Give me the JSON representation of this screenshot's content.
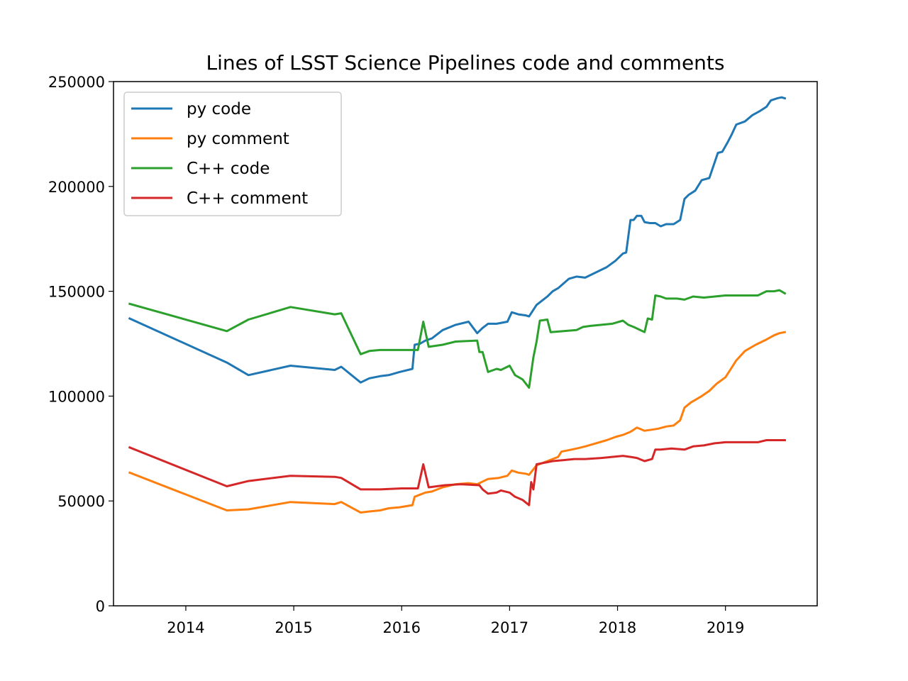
{
  "chart_data": {
    "type": "line",
    "title": "Lines of LSST Science Pipelines code and comments",
    "xlabel": "",
    "ylabel": "",
    "xlim": [
      2013.33,
      2019.85
    ],
    "ylim": [
      0,
      250000
    ],
    "x_ticks": [
      2014,
      2015,
      2016,
      2017,
      2018,
      2019
    ],
    "y_ticks": [
      0,
      50000,
      100000,
      150000,
      200000,
      250000
    ],
    "grid": false,
    "legend_position": "top-left",
    "series": [
      {
        "name": "py code",
        "color": "#1f77b4",
        "x": [
          2013.48,
          2014.38,
          2014.58,
          2014.97,
          2015.38,
          2015.44,
          2015.62,
          2015.7,
          2015.8,
          2015.88,
          2015.98,
          2016.1,
          2016.12,
          2016.17,
          2016.22,
          2016.28,
          2016.38,
          2016.5,
          2016.62,
          2016.7,
          2016.75,
          2016.8,
          2016.88,
          2016.98,
          2017.02,
          2017.08,
          2017.15,
          2017.18,
          2017.25,
          2017.35,
          2017.4,
          2017.45,
          2017.55,
          2017.62,
          2017.7,
          2017.8,
          2017.9,
          2017.98,
          2018.05,
          2018.08,
          2018.12,
          2018.15,
          2018.18,
          2018.22,
          2018.25,
          2018.3,
          2018.35,
          2018.4,
          2018.45,
          2018.52,
          2018.58,
          2018.62,
          2018.66,
          2018.72,
          2018.78,
          2018.85,
          2018.93,
          2018.97,
          2019.02,
          2019.06,
          2019.1,
          2019.18,
          2019.25,
          2019.32,
          2019.38,
          2019.42,
          2019.48,
          2019.52,
          2019.55
        ],
        "y": [
          137000,
          116000,
          110000,
          114500,
          112500,
          114000,
          106500,
          108500,
          109500,
          110000,
          111500,
          113000,
          124500,
          125000,
          126500,
          127500,
          131500,
          134000,
          135500,
          130000,
          132500,
          134500,
          134500,
          135500,
          140000,
          139000,
          138500,
          138000,
          143500,
          147500,
          150000,
          151500,
          156000,
          157000,
          156500,
          159000,
          161500,
          164500,
          168000,
          168500,
          184000,
          184000,
          186000,
          186000,
          183000,
          182500,
          182500,
          181000,
          182000,
          182000,
          184000,
          194000,
          196000,
          198000,
          203000,
          204000,
          216000,
          216500,
          221000,
          225000,
          229500,
          231000,
          234000,
          236000,
          238000,
          241000,
          242000,
          242500,
          242000
        ]
      },
      {
        "name": "py comment",
        "color": "#ff7f0e",
        "x": [
          2013.48,
          2014.38,
          2014.58,
          2014.97,
          2015.38,
          2015.44,
          2015.62,
          2015.7,
          2015.8,
          2015.88,
          2015.98,
          2016.1,
          2016.12,
          2016.17,
          2016.22,
          2016.28,
          2016.38,
          2016.5,
          2016.62,
          2016.7,
          2016.8,
          2016.9,
          2016.98,
          2017.02,
          2017.08,
          2017.15,
          2017.18,
          2017.25,
          2017.35,
          2017.45,
          2017.48,
          2017.62,
          2017.7,
          2017.8,
          2017.9,
          2017.98,
          2018.05,
          2018.12,
          2018.18,
          2018.25,
          2018.32,
          2018.38,
          2018.45,
          2018.52,
          2018.58,
          2018.62,
          2018.68,
          2018.78,
          2018.85,
          2018.92,
          2019.0,
          2019.05,
          2019.1,
          2019.18,
          2019.28,
          2019.38,
          2019.45,
          2019.5,
          2019.55
        ],
        "y": [
          63500,
          45500,
          46000,
          49500,
          48500,
          49500,
          44500,
          45000,
          45500,
          46500,
          47000,
          48000,
          52000,
          53000,
          54000,
          54500,
          56500,
          58000,
          58500,
          58000,
          60500,
          61000,
          62000,
          64500,
          63500,
          63000,
          62500,
          67000,
          69000,
          71000,
          73500,
          75000,
          76000,
          77500,
          79000,
          80500,
          81500,
          83000,
          85000,
          83500,
          84000,
          84500,
          85500,
          86000,
          88500,
          94500,
          97000,
          100000,
          102500,
          106000,
          109000,
          113000,
          117000,
          121500,
          124500,
          127000,
          129000,
          130000,
          130500
        ]
      },
      {
        "name": "C++ code",
        "color": "#2ca02c",
        "x": [
          2013.48,
          2014.38,
          2014.58,
          2014.97,
          2015.38,
          2015.44,
          2015.62,
          2015.7,
          2015.8,
          2016.0,
          2016.15,
          2016.2,
          2016.25,
          2016.38,
          2016.5,
          2016.7,
          2016.72,
          2016.75,
          2016.8,
          2016.88,
          2016.92,
          2017.0,
          2017.05,
          2017.12,
          2017.18,
          2017.22,
          2017.25,
          2017.28,
          2017.35,
          2017.38,
          2017.5,
          2017.62,
          2017.68,
          2017.75,
          2017.85,
          2017.95,
          2018.05,
          2018.1,
          2018.15,
          2018.25,
          2018.28,
          2018.32,
          2018.35,
          2018.4,
          2018.45,
          2018.55,
          2018.62,
          2018.7,
          2018.8,
          2018.9,
          2019.0,
          2019.2,
          2019.3,
          2019.38,
          2019.45,
          2019.5,
          2019.55
        ],
        "y": [
          144000,
          131000,
          136500,
          142500,
          139000,
          139500,
          120000,
          121500,
          122000,
          122000,
          122000,
          135500,
          123500,
          124500,
          126000,
          126500,
          121000,
          121000,
          111500,
          113000,
          112500,
          114500,
          110000,
          108000,
          104000,
          118500,
          126000,
          136000,
          136500,
          130500,
          131000,
          131500,
          133000,
          133500,
          134000,
          134500,
          136000,
          134000,
          133000,
          130500,
          137000,
          136500,
          148000,
          147500,
          146500,
          146500,
          146000,
          147500,
          147000,
          147500,
          148000,
          148000,
          148000,
          150000,
          150000,
          150500,
          149000
        ]
      },
      {
        "name": "C++ comment",
        "color": "#d62728",
        "x": [
          2013.48,
          2014.38,
          2014.58,
          2014.97,
          2015.38,
          2015.44,
          2015.62,
          2015.8,
          2016.0,
          2016.15,
          2016.2,
          2016.25,
          2016.4,
          2016.55,
          2016.72,
          2016.75,
          2016.8,
          2016.88,
          2016.92,
          2017.0,
          2017.05,
          2017.12,
          2017.18,
          2017.2,
          2017.22,
          2017.25,
          2017.35,
          2017.4,
          2017.5,
          2017.6,
          2017.7,
          2017.85,
          2017.95,
          2018.05,
          2018.12,
          2018.18,
          2018.25,
          2018.32,
          2018.35,
          2018.4,
          2018.5,
          2018.62,
          2018.7,
          2018.8,
          2018.9,
          2019.0,
          2019.15,
          2019.3,
          2019.38,
          2019.45,
          2019.55
        ],
        "y": [
          75500,
          57000,
          59500,
          62000,
          61500,
          61000,
          55500,
          55500,
          56000,
          56000,
          67500,
          56500,
          57500,
          58000,
          57500,
          55500,
          53500,
          54000,
          55000,
          54000,
          52000,
          50500,
          48000,
          59000,
          55500,
          67500,
          68500,
          69000,
          69500,
          70000,
          70000,
          70500,
          71000,
          71500,
          71000,
          70500,
          69000,
          70000,
          74500,
          74500,
          75000,
          74500,
          76000,
          76500,
          77500,
          78000,
          78000,
          78000,
          79000,
          79000,
          79000
        ]
      }
    ]
  }
}
